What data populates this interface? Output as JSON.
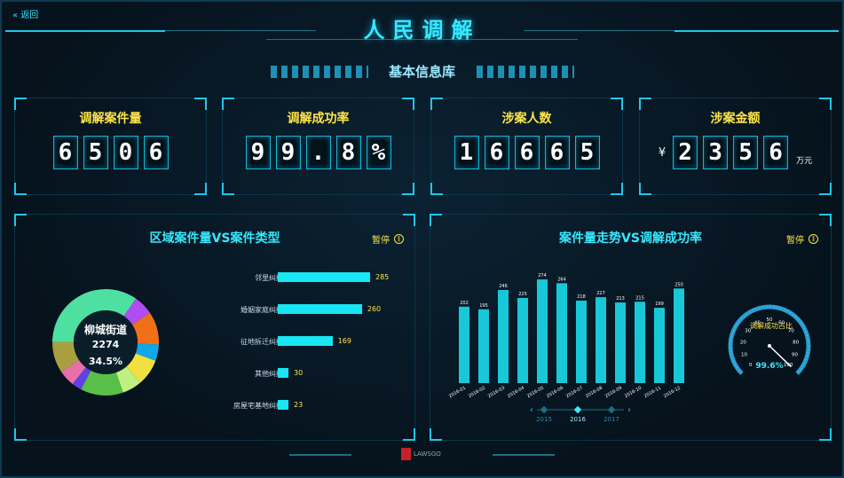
{
  "header": {
    "back_label": "返回",
    "title": "人民调解",
    "subtitle": "基本信息库"
  },
  "stats": [
    {
      "label": "调解案件量",
      "digits": [
        "6",
        "5",
        "0",
        "6"
      ],
      "prefix": "",
      "unit": ""
    },
    {
      "label": "调解成功率",
      "digits": [
        "9",
        "9",
        ".",
        "8",
        "%"
      ],
      "prefix": "",
      "unit": ""
    },
    {
      "label": "涉案人数",
      "digits": [
        "1",
        "6",
        "6",
        "6",
        "5"
      ],
      "prefix": "",
      "unit": ""
    },
    {
      "label": "涉案金额",
      "digits": [
        "2",
        "3",
        "5",
        "6"
      ],
      "prefix": "¥",
      "unit": "万元"
    }
  ],
  "left_panel": {
    "title": "区域案件量VS案件类型",
    "pause_label": "暂停",
    "donut_center": {
      "name": "柳城街道",
      "count": "2274",
      "percent": "34.5%"
    },
    "donut_segments": [
      {
        "value": 34.5,
        "color": "#4ee0a0"
      },
      {
        "value": 6,
        "color": "#b04df0"
      },
      {
        "value": 10,
        "color": "#f07018"
      },
      {
        "value": 5,
        "color": "#10a8e8"
      },
      {
        "value": 8,
        "color": "#f0e040"
      },
      {
        "value": 6,
        "color": "#c0f080"
      },
      {
        "value": 13,
        "color": "#58c048"
      },
      {
        "value": 3,
        "color": "#6040e8"
      },
      {
        "value": 5,
        "color": "#e870a8"
      },
      {
        "value": 9.5,
        "color": "#a8a040"
      }
    ],
    "bars": [
      {
        "label": "邻里纠纷",
        "value": 285
      },
      {
        "label": "婚姻家庭纠纷",
        "value": 260
      },
      {
        "label": "征地拆迁纠纷",
        "value": 169
      },
      {
        "label": "其他纠纷",
        "value": 30
      },
      {
        "label": "房屋宅基地纠纷",
        "value": 23
      }
    ],
    "bar_max": 285
  },
  "right_panel": {
    "title": "案件量走势VS调解成功率",
    "pause_label": "暂停",
    "gauge_label": "调解成功占比",
    "gauge_value_text": "99.6%",
    "gauge_value": 99.6,
    "gauge_ticks": [
      "0",
      "10",
      "20",
      "30",
      "40",
      "50",
      "60",
      "70",
      "80",
      "90",
      "100"
    ],
    "years": [
      "2015",
      "2016",
      "2017"
    ],
    "active_year": "2016"
  },
  "chart_data": {
    "type": "bar",
    "categories": [
      "2016-01",
      "2016-02",
      "2016-03",
      "2016-04",
      "2016-05",
      "2016-06",
      "2016-07",
      "2016-08",
      "2016-09",
      "2016-10",
      "2016-11",
      "2016-12"
    ],
    "values": [
      202,
      195,
      246,
      225,
      274,
      264,
      218,
      227,
      213,
      215,
      199,
      250
    ],
    "ylim": [
      0,
      300
    ]
  },
  "footer": {
    "logo_text": "LAWSGO"
  },
  "colors": {
    "accent": "#1ec8e8",
    "bar": "#18c8d8",
    "label": "#ffe64a"
  }
}
